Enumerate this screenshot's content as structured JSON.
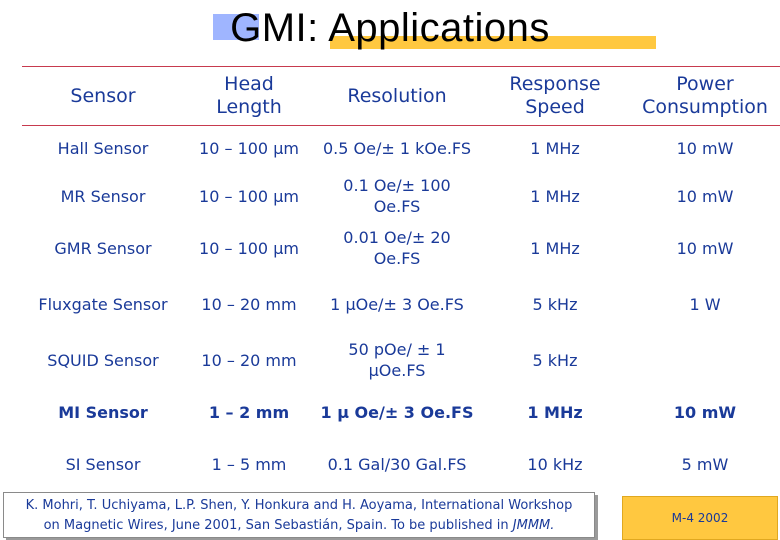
{
  "title": "GMI: Applications",
  "columns": [
    "Sensor",
    "Head Length",
    "Resolution",
    "Response Speed",
    "Power Consumption"
  ],
  "header_lines": {
    "sensor": [
      "Sensor"
    ],
    "head_length": [
      "Head",
      "Length"
    ],
    "resolution": [
      "Resolution"
    ],
    "response_speed": [
      "Response",
      "Speed"
    ],
    "power": [
      "Power",
      "Consumption"
    ]
  },
  "rows": [
    {
      "sensor": "Hall Sensor",
      "head_length": "10 – 100 μm",
      "resolution": [
        "0.5 Oe/± 1 kOe.FS"
      ],
      "speed": "1 MHz",
      "power": "10 mW"
    },
    {
      "sensor": "MR Sensor",
      "head_length": "10 – 100 μm",
      "resolution": [
        "0.1 Oe/± 100",
        "Oe.FS"
      ],
      "speed": "1 MHz",
      "power": "10 mW"
    },
    {
      "sensor": "GMR Sensor",
      "head_length": "10 – 100 μm",
      "resolution": [
        "0.01 Oe/± 20",
        "Oe.FS"
      ],
      "speed": "1 MHz",
      "power": "10 mW"
    },
    {
      "sensor": "Fluxgate Sensor",
      "head_length": "10 – 20 mm",
      "resolution": [
        "1 μOe/± 3 Oe.FS"
      ],
      "speed": "5 kHz",
      "power": "1 W"
    },
    {
      "sensor": "SQUID Sensor",
      "head_length": "10 – 20 mm",
      "resolution": [
        "50 pOe/ ± 1",
        "μOe.FS"
      ],
      "speed": "5 kHz",
      "power": ""
    },
    {
      "sensor": "MI Sensor",
      "head_length": "1 – 2 mm",
      "resolution": [
        "1 μ Oe/± 3 Oe.FS"
      ],
      "speed": "1 MHz",
      "power": "10 mW"
    },
    {
      "sensor": "SI Sensor",
      "head_length": "1 – 5 mm",
      "resolution": [
        "0.1 Gal/30 Gal.FS"
      ],
      "speed": "10 kHz",
      "power": "5 mW"
    }
  ],
  "footer": {
    "line1": "K. Mohri, T. Uchiyama, L.P. Shen, Y. Honkura and H. Aoyama, International Workshop",
    "line2": "on Magnetic Wires, June 2001, San Sebastián, Spain. To be published in ",
    "journal": "JMMM."
  },
  "slide_id": "M-4 2002",
  "colors": {
    "text": "#1a3a99",
    "rule": "#c73a4e",
    "accent_yellow": "#ffc840",
    "accent_blue": "#9fb5ff"
  }
}
